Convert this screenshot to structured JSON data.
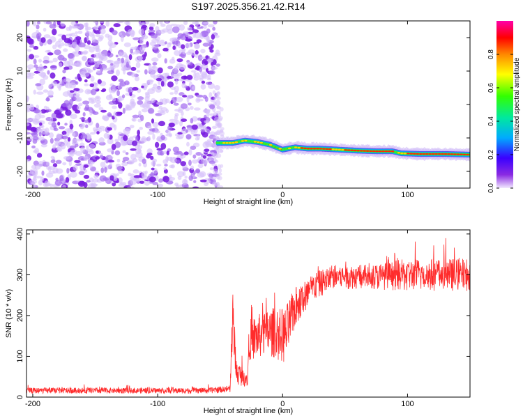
{
  "title": "S197.2025.356.21.42.R14",
  "colors": {
    "snr_line": "#ff2b2b",
    "noise": "#8a2be2",
    "axes": "#000000"
  },
  "chart_data": [
    {
      "type": "heatmap",
      "name": "spectrogram",
      "xlabel": "Height of straight line (km)",
      "ylabel": "Frequency (Hz)",
      "xlim": [
        -205,
        150
      ],
      "ylim": [
        -25,
        25
      ],
      "xticks": [
        -200,
        -100,
        0,
        100
      ],
      "yticks": [
        -20,
        -10,
        0,
        10,
        20
      ],
      "colorbar": {
        "label": "Normalized spectral amplitude",
        "range": [
          0.0,
          1.0
        ],
        "ticks": [
          "0.0",
          "0.2",
          "0.4",
          "0.6",
          "0.8"
        ],
        "colormap": "rainbow"
      },
      "noise_region_x": [
        -205,
        -55
      ],
      "signal_track": [
        {
          "x": -52,
          "y": -11.5
        },
        {
          "x": -40,
          "y": -11.5
        },
        {
          "x": -30,
          "y": -10.8
        },
        {
          "x": -20,
          "y": -11.2
        },
        {
          "x": -10,
          "y": -12.0
        },
        {
          "x": 0,
          "y": -13.5
        },
        {
          "x": 10,
          "y": -12.8
        },
        {
          "x": 20,
          "y": -13.2
        },
        {
          "x": 30,
          "y": -13.2
        },
        {
          "x": 45,
          "y": -13.5
        },
        {
          "x": 60,
          "y": -13.8
        },
        {
          "x": 75,
          "y": -14.0
        },
        {
          "x": 88,
          "y": -14.0
        },
        {
          "x": 95,
          "y": -14.6
        },
        {
          "x": 110,
          "y": -14.8
        },
        {
          "x": 130,
          "y": -14.8
        },
        {
          "x": 150,
          "y": -15.0
        }
      ]
    },
    {
      "type": "line",
      "name": "snr",
      "xlabel": "Height of straight line (km)",
      "ylabel": "SNR (10 * v/v)",
      "xlim": [
        -205,
        150
      ],
      "ylim": [
        0,
        410
      ],
      "xticks": [
        -200,
        -100,
        0,
        100
      ],
      "yticks": [
        0,
        100,
        200,
        300,
        400
      ],
      "envelope": [
        {
          "x": -205,
          "mean": 16,
          "spread": 7
        },
        {
          "x": -60,
          "mean": 16,
          "spread": 7
        },
        {
          "x": -42,
          "mean": 20,
          "spread": 8
        },
        {
          "x": -40,
          "mean": 200,
          "spread": 70
        },
        {
          "x": -37,
          "mean": 60,
          "spread": 30
        },
        {
          "x": -28,
          "mean": 45,
          "spread": 20
        },
        {
          "x": -27,
          "mean": 140,
          "spread": 50
        },
        {
          "x": -10,
          "mean": 160,
          "spread": 60
        },
        {
          "x": 2,
          "mean": 150,
          "spread": 70
        },
        {
          "x": 10,
          "mean": 220,
          "spread": 50
        },
        {
          "x": 25,
          "mean": 270,
          "spread": 35
        },
        {
          "x": 40,
          "mean": 295,
          "spread": 30
        },
        {
          "x": 70,
          "mean": 295,
          "spread": 30
        },
        {
          "x": 100,
          "mean": 300,
          "spread": 40
        },
        {
          "x": 150,
          "mean": 300,
          "spread": 40
        }
      ]
    }
  ]
}
